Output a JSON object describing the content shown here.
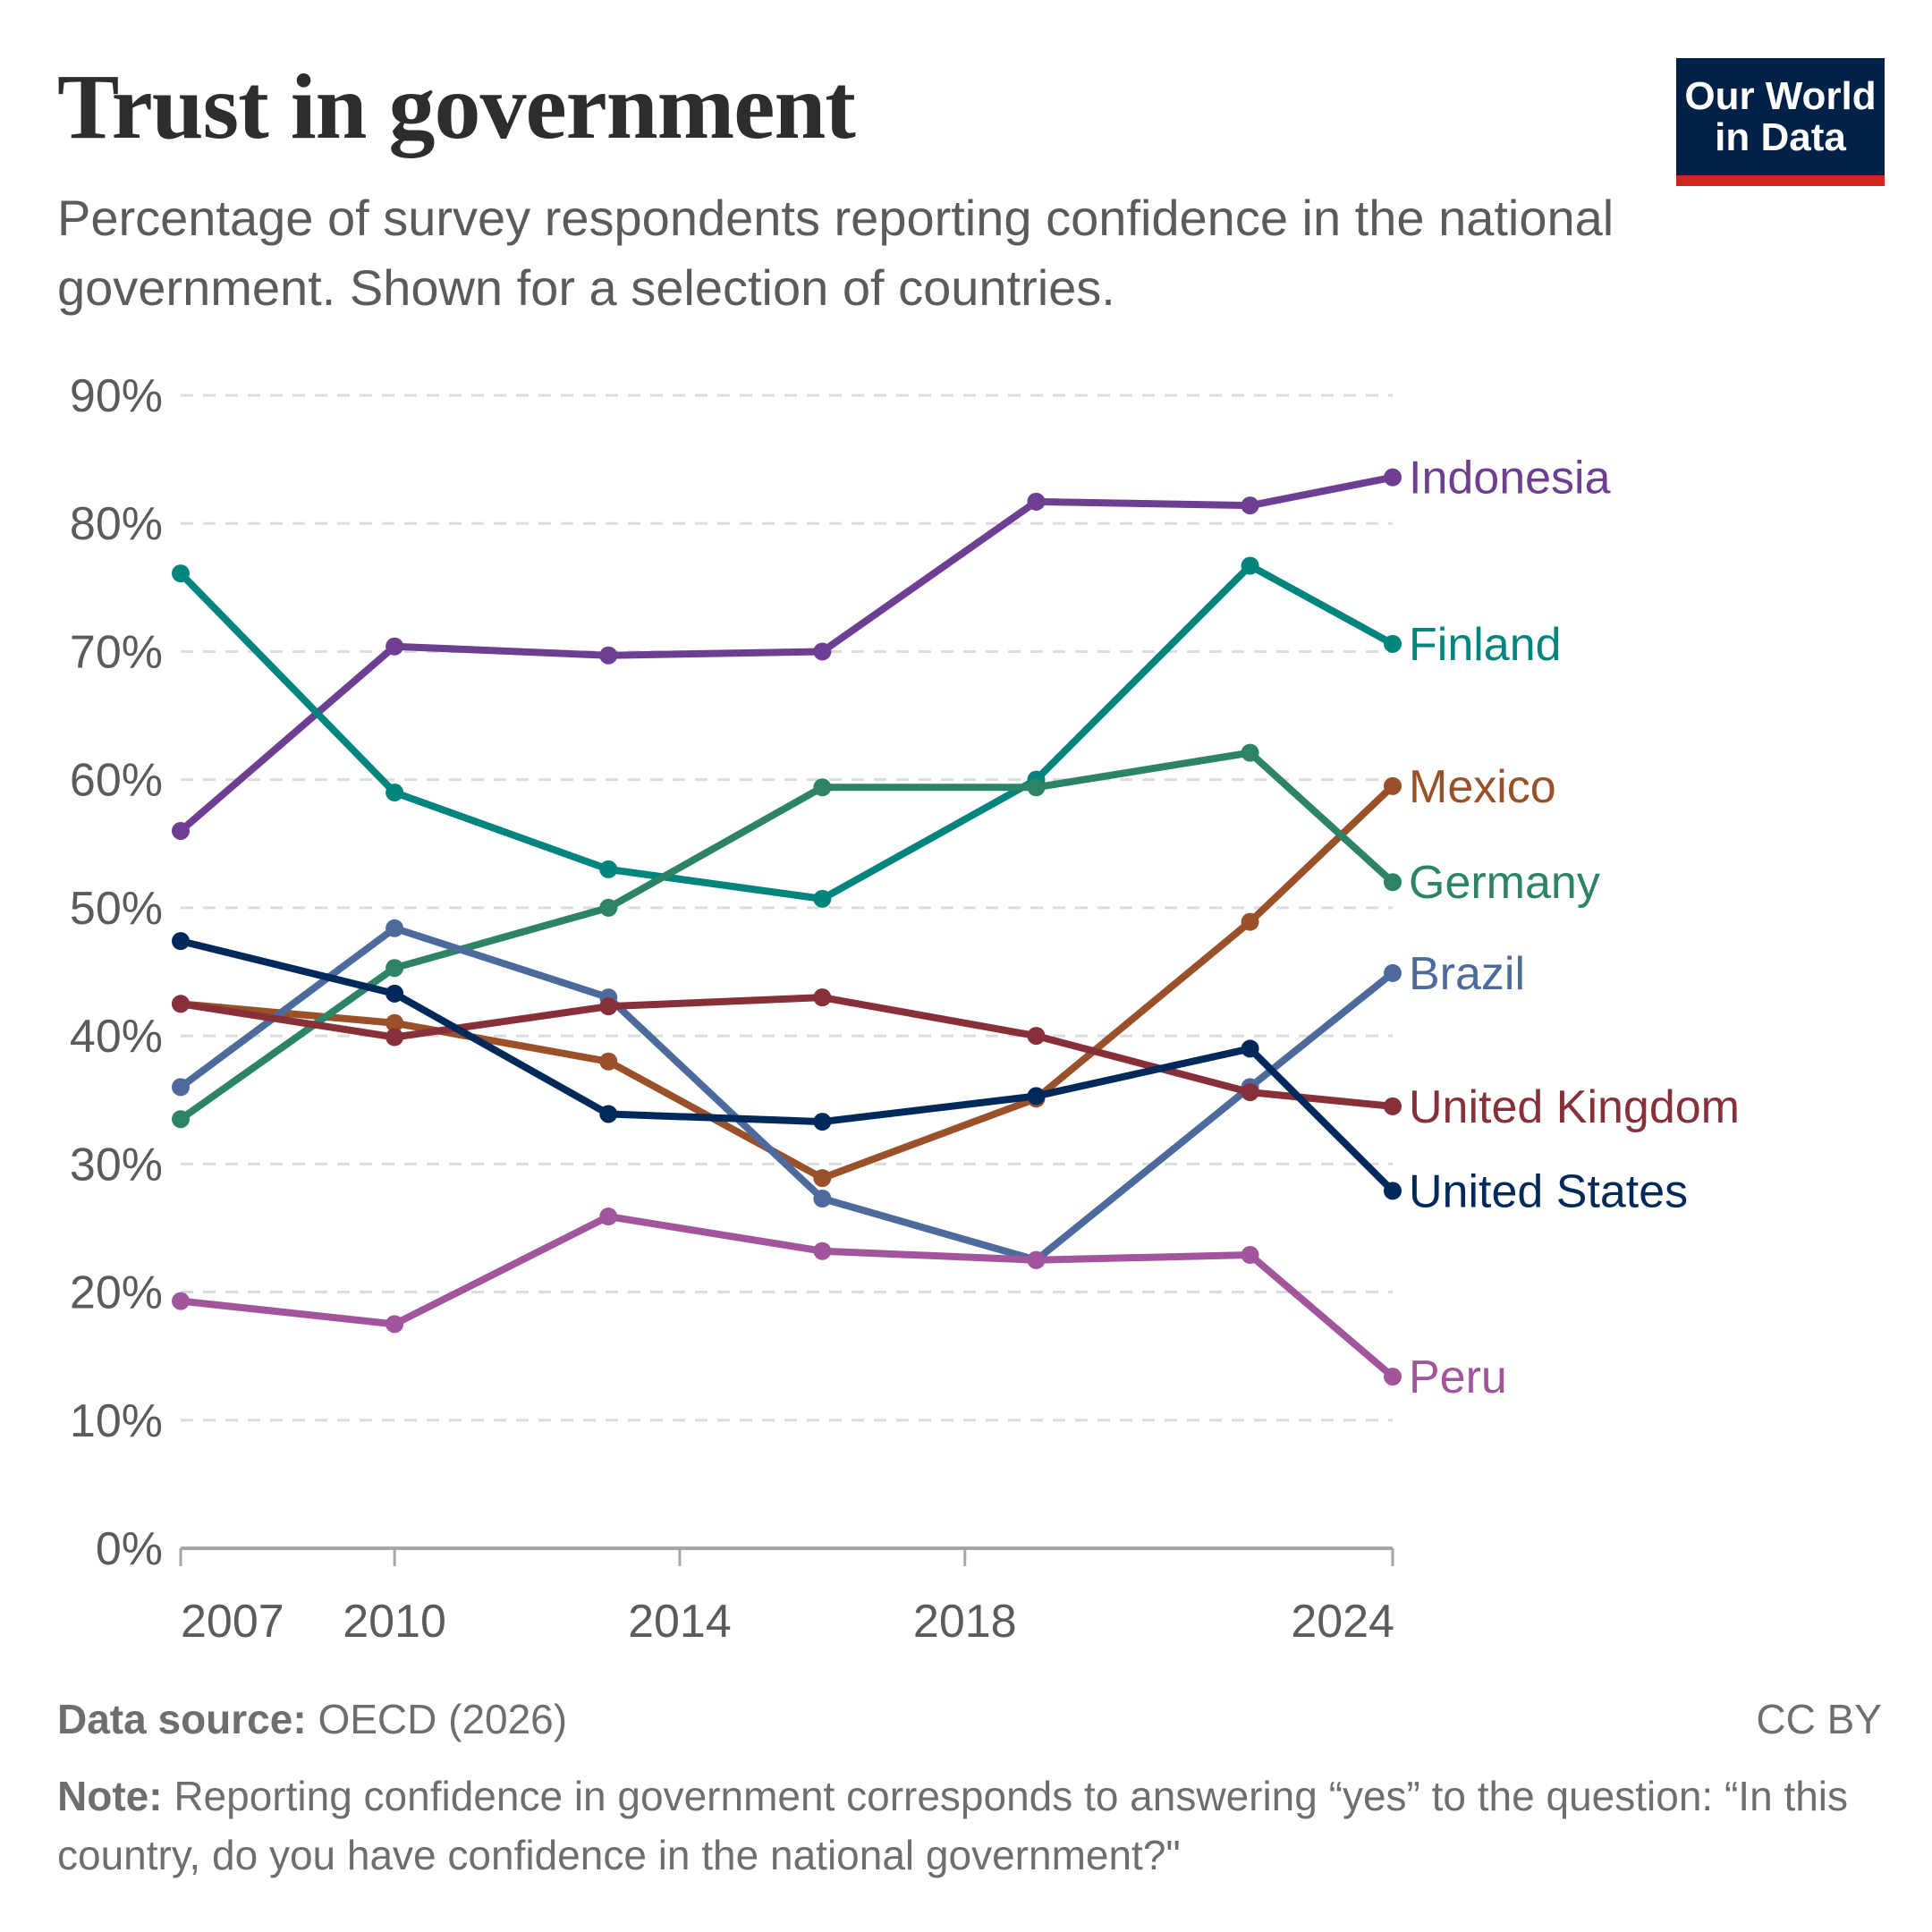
{
  "title": "Trust in government",
  "subtitle": "Percentage of survey respondents reporting confidence in the national government. Shown for a selection of countries.",
  "logo": "Our World in Data",
  "footer": {
    "source_label": "Data source:",
    "source": "OECD (2026)",
    "license": "CC BY",
    "note_label": "Note:",
    "note": "Reporting confidence in government corresponds to answering “yes” to the question: “In this country, do you have confidence in the national government?\""
  },
  "chart_data": {
    "type": "line",
    "title": "Trust in government",
    "x": [
      2007,
      2010,
      2013,
      2016,
      2019,
      2022,
      2024
    ],
    "xticks": [
      "2007",
      "2010",
      "2014",
      "2018",
      "2024"
    ],
    "yticks": [
      "0%",
      "10%",
      "20%",
      "30%",
      "40%",
      "50%",
      "60%",
      "70%",
      "80%",
      "90%"
    ],
    "ylim": [
      0,
      90
    ],
    "grid": "horizontal dashed",
    "legend": "labels at line ends (right)",
    "series": [
      {
        "name": "Indonesia",
        "color": "#6d3e91",
        "values": [
          56.0,
          70.4,
          69.7,
          70.0,
          81.7,
          81.4,
          83.6
        ]
      },
      {
        "name": "Finland",
        "color": "#00847e",
        "values": [
          76.1,
          59.0,
          53.0,
          50.7,
          60.0,
          76.7,
          70.6
        ]
      },
      {
        "name": "Mexico",
        "color": "#9a5129",
        "values": [
          42.5,
          41.0,
          38.0,
          28.9,
          35.1,
          48.9,
          59.5
        ]
      },
      {
        "name": "Germany",
        "color": "#2c8465",
        "values": [
          33.5,
          45.3,
          50.0,
          59.4,
          59.4,
          62.1,
          52.0
        ]
      },
      {
        "name": "Brazil",
        "color": "#4c6a9c",
        "values": [
          36.0,
          48.4,
          43.0,
          27.3,
          22.5,
          36.0,
          44.9
        ]
      },
      {
        "name": "United Kingdom",
        "color": "#883039",
        "values": [
          42.5,
          39.9,
          42.3,
          43.0,
          40.0,
          35.6,
          34.5
        ]
      },
      {
        "name": "United States",
        "color": "#00295b",
        "values": [
          47.4,
          43.3,
          33.9,
          33.3,
          35.3,
          39.0,
          27.9
        ]
      },
      {
        "name": "Peru",
        "color": "#a2559c",
        "values": [
          19.3,
          17.5,
          25.9,
          23.2,
          22.5,
          22.9,
          13.4
        ]
      }
    ]
  }
}
